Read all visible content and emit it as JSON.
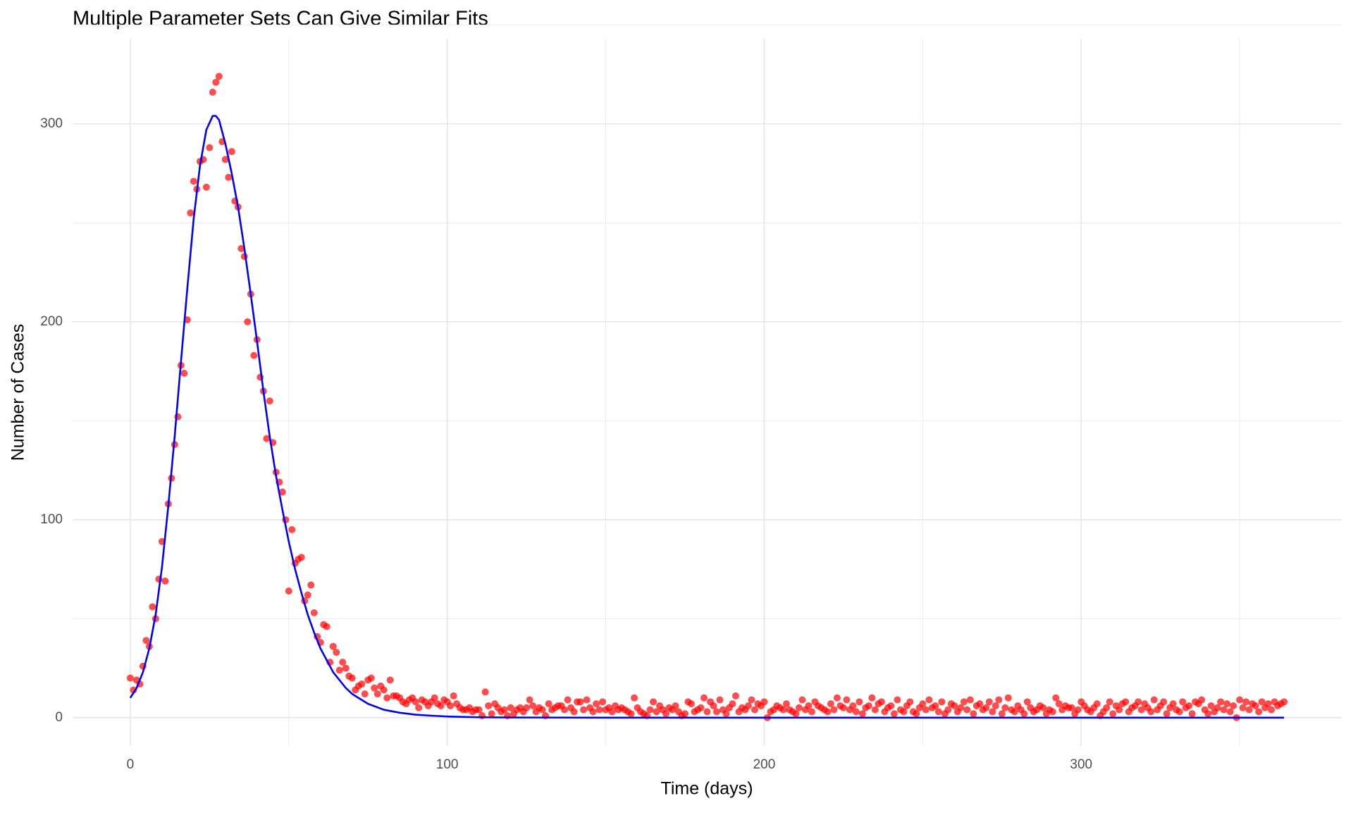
{
  "chart_data": {
    "type": "scatter",
    "title": "Multiple Parameter Sets Can Give Similar Fits",
    "x_label": "Time (days)",
    "y_label": "Number of Cases",
    "xlim": [
      -18.2,
      382.2
    ],
    "ylim": [
      -14.3,
      343
    ],
    "xticks": [
      0,
      100,
      200,
      300
    ],
    "yticks": [
      0,
      100,
      200,
      300
    ],
    "grid": true,
    "series": [
      {
        "type": "scatter",
        "color": "#ff0000",
        "x": [
          0,
          1,
          2,
          3,
          4,
          5,
          6,
          7,
          8,
          9,
          10,
          11,
          12,
          13,
          14,
          15,
          16,
          17,
          18,
          19,
          20,
          21,
          22,
          23,
          24,
          25,
          26,
          27,
          28,
          29,
          30,
          31,
          32,
          33,
          34,
          35,
          36,
          37,
          38,
          39,
          40,
          41,
          42,
          43,
          44,
          45,
          46,
          47,
          48,
          49,
          50,
          51,
          52,
          53,
          54,
          55,
          56,
          57,
          58,
          59,
          60,
          61,
          62,
          63,
          64,
          65,
          66,
          67,
          68,
          69,
          70,
          71,
          72,
          73,
          74,
          75,
          76,
          77,
          78,
          79,
          80,
          81,
          82,
          83,
          84,
          85,
          86,
          87,
          88,
          89,
          90,
          91,
          92,
          93,
          94,
          95,
          96,
          97,
          98,
          99,
          100,
          101,
          102,
          103,
          104,
          105,
          106,
          107,
          108,
          109,
          110,
          111,
          112,
          113,
          114,
          115,
          116,
          117,
          118,
          119,
          120,
          121,
          122,
          123,
          124,
          125,
          126,
          127,
          128,
          129,
          130,
          131,
          132,
          133,
          134,
          135,
          136,
          137,
          138,
          139,
          140,
          141,
          142,
          143,
          144,
          145,
          146,
          147,
          148,
          149,
          150,
          151,
          152,
          153,
          154,
          155,
          156,
          157,
          158,
          159,
          160,
          161,
          162,
          163,
          164,
          165,
          166,
          167,
          168,
          169,
          170,
          171,
          172,
          173,
          174,
          175,
          176,
          177,
          178,
          179,
          180,
          181,
          182,
          183,
          184,
          185,
          186,
          187,
          188,
          189,
          190,
          191,
          192,
          193,
          194,
          195,
          196,
          197,
          198,
          199,
          200,
          201,
          202,
          203,
          204,
          205,
          206,
          207,
          208,
          209,
          210,
          211,
          212,
          213,
          214,
          215,
          216,
          217,
          218,
          219,
          220,
          221,
          222,
          223,
          224,
          225,
          226,
          227,
          228,
          229,
          230,
          231,
          232,
          233,
          234,
          235,
          236,
          237,
          238,
          239,
          240,
          241,
          242,
          243,
          244,
          245,
          246,
          247,
          248,
          249,
          250,
          251,
          252,
          253,
          254,
          255,
          256,
          257,
          258,
          259,
          260,
          261,
          262,
          263,
          264,
          265,
          266,
          267,
          268,
          269,
          270,
          271,
          272,
          273,
          274,
          275,
          276,
          277,
          278,
          279,
          280,
          281,
          282,
          283,
          284,
          285,
          286,
          287,
          288,
          289,
          290,
          291,
          292,
          293,
          294,
          295,
          296,
          297,
          298,
          299,
          300,
          301,
          302,
          303,
          304,
          305,
          306,
          307,
          308,
          309,
          310,
          311,
          312,
          313,
          314,
          315,
          316,
          317,
          318,
          319,
          320,
          321,
          322,
          323,
          324,
          325,
          326,
          327,
          328,
          329,
          330,
          331,
          332,
          333,
          334,
          335,
          336,
          337,
          338,
          339,
          340,
          341,
          342,
          343,
          344,
          345,
          346,
          347,
          348,
          349,
          350,
          351,
          352,
          353,
          354,
          355,
          356,
          357,
          358,
          359,
          360,
          361,
          362,
          363,
          364
        ],
        "values": [
          20,
          14,
          19,
          17,
          26,
          39,
          36,
          56,
          50,
          70,
          89,
          69,
          108,
          121,
          138,
          152,
          178,
          174,
          201,
          255,
          271,
          267,
          281,
          282,
          268,
          288,
          316,
          321,
          324,
          291,
          282,
          273,
          286,
          261,
          258,
          237,
          233,
          200,
          214,
          183,
          191,
          172,
          165,
          141,
          160,
          139,
          124,
          119,
          114,
          100,
          64,
          95,
          78,
          80,
          81,
          59,
          62,
          67,
          53,
          41,
          38,
          47,
          46,
          28,
          36,
          33,
          24,
          28,
          25,
          21,
          20,
          14,
          16,
          17,
          12,
          19,
          20,
          15,
          12,
          16,
          14,
          10,
          19,
          11,
          11,
          10,
          8,
          7,
          9,
          10,
          8,
          5,
          9,
          8,
          6,
          8,
          10,
          7,
          6,
          9,
          8,
          6,
          11,
          7,
          5,
          4,
          4,
          5,
          3,
          4,
          4,
          1,
          13,
          6,
          2,
          7,
          5,
          3,
          4,
          1,
          5,
          2,
          4,
          5,
          3,
          5,
          9,
          6,
          3,
          5,
          4,
          1,
          7,
          4,
          5,
          6,
          6,
          4,
          9,
          5,
          3,
          8,
          8,
          4,
          9,
          5,
          3,
          7,
          4,
          8,
          4,
          5,
          3,
          6,
          4,
          5,
          4,
          3,
          2,
          10,
          5,
          3,
          2,
          1,
          4,
          8,
          3,
          6,
          4,
          2,
          5,
          4,
          6,
          3,
          1,
          2,
          8,
          7,
          3,
          4,
          5,
          10,
          3,
          8,
          6,
          3,
          9,
          4,
          2,
          5,
          7,
          11,
          3,
          5,
          4,
          6,
          9,
          4,
          7,
          6,
          8,
          0,
          3,
          4,
          6,
          5,
          4,
          7,
          4,
          3,
          2,
          5,
          9,
          4,
          6,
          3,
          8,
          6,
          5,
          4,
          3,
          7,
          4,
          10,
          6,
          5,
          9,
          4,
          6,
          3,
          8,
          2,
          5,
          6,
          10,
          4,
          7,
          8,
          3,
          5,
          6,
          2,
          9,
          4,
          3,
          6,
          8,
          3,
          2,
          5,
          7,
          4,
          9,
          5,
          6,
          3,
          8,
          2,
          4,
          7,
          6,
          3,
          5,
          8,
          4,
          9,
          2,
          6,
          7,
          4,
          5,
          8,
          3,
          6,
          9,
          2,
          5,
          10,
          4,
          3,
          6,
          4,
          2,
          8,
          5,
          3,
          4,
          6,
          5,
          2,
          4,
          3,
          10,
          7,
          4,
          6,
          5,
          5,
          2,
          4,
          8,
          6,
          4,
          3,
          5,
          7,
          1,
          3,
          5,
          8,
          2,
          6,
          4,
          7,
          8,
          3,
          5,
          6,
          8,
          4,
          7,
          5,
          3,
          9,
          4,
          6,
          8,
          2,
          5,
          7,
          4,
          3,
          8,
          5,
          6,
          2,
          8,
          7,
          9,
          4,
          2,
          6,
          3,
          5,
          8,
          4,
          7,
          3,
          6,
          0,
          9,
          5,
          8,
          4,
          7,
          6,
          3,
          8,
          5,
          7,
          4,
          8,
          6,
          7,
          8
        ]
      },
      {
        "type": "line",
        "color": "#0000ff",
        "x": [
          0,
          2,
          4,
          6,
          8,
          10,
          12,
          14,
          16,
          18,
          20,
          22,
          24,
          26,
          27,
          28,
          30,
          32,
          34,
          36,
          38,
          40,
          42,
          44,
          46,
          48,
          50,
          52,
          54,
          56,
          58,
          60,
          62,
          64,
          66,
          68,
          70,
          72,
          75,
          80,
          85,
          90,
          95,
          100,
          110,
          120,
          150,
          364
        ],
        "values": [
          10,
          15,
          23,
          35,
          52,
          76,
          107,
          142,
          180,
          217,
          252,
          279,
          297,
          304,
          304,
          302,
          290,
          275,
          258,
          237,
          214,
          190,
          165,
          142,
          122,
          105,
          89,
          75,
          63,
          52,
          43,
          35,
          29,
          23,
          19,
          15,
          12,
          10,
          7,
          4,
          2.5,
          1.5,
          1,
          0.6,
          0.2,
          0.1,
          0,
          0
        ]
      }
    ]
  }
}
